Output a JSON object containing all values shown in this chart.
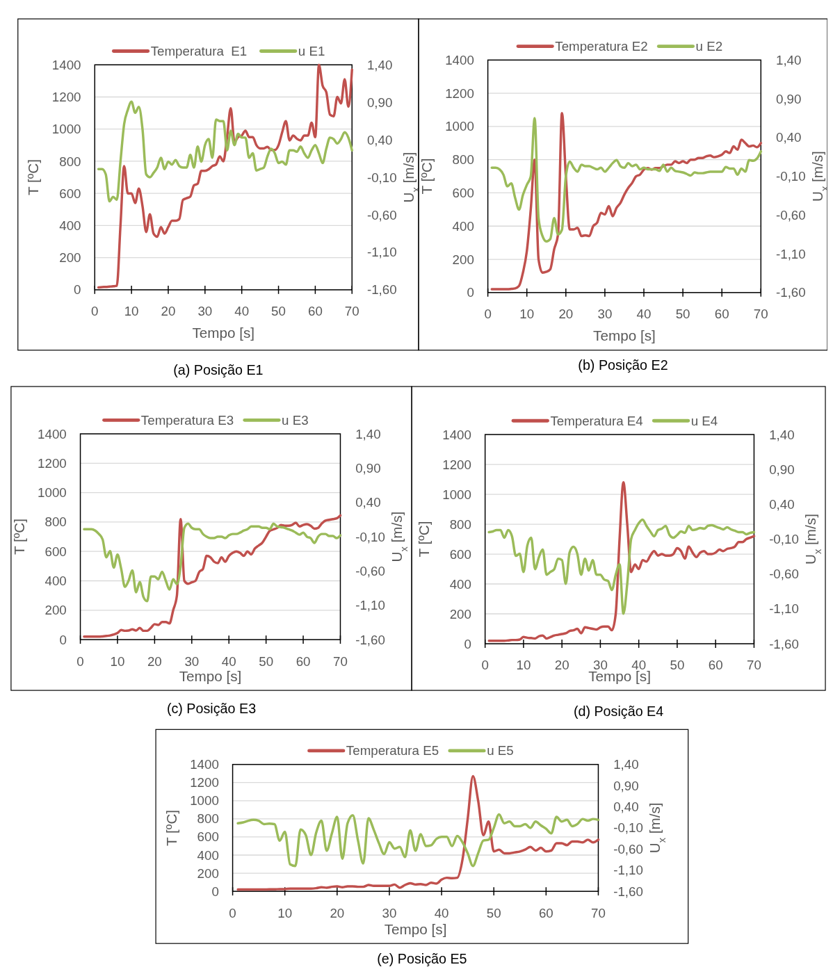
{
  "chart_data": [
    {
      "type": "line",
      "xlabel": "Tempo [s]",
      "ylabel": "T [ºC]",
      "y2label": "U$_{x}$ [m/s]",
      "annotations": [
        "(a) Posição E1"
      ],
      "legend": "top",
      "grid": "y",
      "xlim": [
        0,
        70
      ],
      "xticks": [
        0,
        10,
        20,
        30,
        40,
        50,
        60,
        70
      ],
      "ylim": [
        0,
        1400
      ],
      "yticks": [
        0,
        200,
        400,
        600,
        800,
        1000,
        1200,
        1400
      ],
      "y2lim": [
        -1.6,
        1.4
      ],
      "y2ticks": [
        {
          "value": -1.6,
          "label": "-1,60"
        },
        {
          "value": -1.1,
          "label": "-1,10"
        },
        {
          "value": -0.6,
          "label": "-0,60"
        },
        {
          "value": -0.1,
          "label": "-0,10"
        },
        {
          "value": 0.4,
          "label": "0,40"
        },
        {
          "value": 0.9,
          "label": "0,90"
        },
        {
          "value": 1.4,
          "label": "1,40"
        }
      ],
      "x": [
        1,
        2,
        3,
        4,
        5,
        6,
        7,
        8,
        9,
        10,
        11,
        12,
        13,
        14,
        15,
        16,
        17,
        18,
        19,
        20,
        21,
        22,
        23,
        24,
        25,
        26,
        27,
        28,
        29,
        30,
        31,
        32,
        33,
        34,
        35,
        36,
        37,
        38,
        39,
        40,
        41,
        42,
        43,
        44,
        45,
        46,
        47,
        48,
        49,
        50,
        51,
        52,
        53,
        54,
        55,
        56,
        57,
        58,
        59,
        60,
        61,
        62,
        63,
        64,
        65,
        66,
        67,
        68,
        69,
        70
      ],
      "series": [
        {
          "name": "Temperatura  E1",
          "color": "#c0504d",
          "values": [
            15,
            17,
            18,
            20,
            22,
            25,
            400,
            770,
            600,
            600,
            540,
            630,
            520,
            360,
            470,
            350,
            330,
            390,
            350,
            390,
            430,
            430,
            440,
            560,
            570,
            580,
            650,
            660,
            740,
            740,
            750,
            770,
            780,
            830,
            800,
            950,
            1130,
            920,
            950,
            960,
            990,
            950,
            950,
            900,
            880,
            880,
            890,
            870,
            870,
            900,
            980,
            1050,
            930,
            960,
            940,
            930,
            960,
            960,
            1040,
            950,
            1400,
            1270,
            1230,
            1090,
            1080,
            1200,
            1160,
            1310,
            1140,
            1370
          ]
        },
        {
          "name": "u E1",
          "color": "#9bbb59",
          "axis": "y2",
          "values": [
            0.01,
            0.01,
            -0.06,
            -0.42,
            -0.36,
            -0.4,
            0.11,
            0.61,
            0.8,
            0.91,
            0.76,
            0.84,
            0.54,
            -0.06,
            -0.1,
            -0.04,
            0.03,
            0.16,
            0.01,
            0.11,
            0.07,
            0.13,
            0.05,
            0.03,
            0.03,
            0.2,
            0.03,
            0.31,
            0.11,
            0.33,
            0.41,
            0.16,
            0.67,
            0.65,
            0.65,
            0.26,
            0.52,
            0.33,
            0.48,
            0.43,
            0.43,
            0.16,
            0.22,
            -0.01,
            0.01,
            0.03,
            0.18,
            0.28,
            0.22,
            0.09,
            0.11,
            0.07,
            0.26,
            0.26,
            0.24,
            0.31,
            0.22,
            0.16,
            0.26,
            0.33,
            0.22,
            0.09,
            0.28,
            0.43,
            0.41,
            0.35,
            0.41,
            0.5,
            0.43,
            0.26
          ]
        }
      ]
    },
    {
      "type": "line",
      "xlabel": "Tempo [s]",
      "ylabel": "T [ºC]",
      "y2label": "U$_{x}$ [m/s]",
      "annotations": [
        "(b) Posição E2"
      ],
      "legend": "top",
      "grid": "y",
      "xlim": [
        0,
        70
      ],
      "xticks": [
        0,
        10,
        20,
        30,
        40,
        50,
        60,
        70
      ],
      "ylim": [
        0,
        1400
      ],
      "yticks": [
        0,
        200,
        400,
        600,
        800,
        1000,
        1200,
        1400
      ],
      "y2lim": [
        -1.6,
        1.4
      ],
      "y2ticks": [
        {
          "value": -1.6,
          "label": "-1,60"
        },
        {
          "value": -1.1,
          "label": "-1,10"
        },
        {
          "value": -0.6,
          "label": "-0,60"
        },
        {
          "value": -0.1,
          "label": "-0,10"
        },
        {
          "value": 0.4,
          "label": "0,40"
        },
        {
          "value": 0.9,
          "label": "0,90"
        },
        {
          "value": 1.4,
          "label": "1,40"
        }
      ],
      "x": [
        1,
        2,
        3,
        4,
        5,
        6,
        7,
        8,
        9,
        10,
        11,
        12,
        13,
        14,
        15,
        16,
        17,
        18,
        19,
        20,
        21,
        22,
        23,
        24,
        25,
        26,
        27,
        28,
        29,
        30,
        31,
        32,
        33,
        34,
        35,
        36,
        37,
        38,
        39,
        40,
        41,
        42,
        43,
        44,
        45,
        46,
        47,
        48,
        49,
        50,
        51,
        52,
        53,
        54,
        55,
        56,
        57,
        58,
        59,
        60,
        61,
        62,
        63,
        64,
        65,
        66,
        67,
        68,
        69,
        70
      ],
      "series": [
        {
          "name": "Temperatura E2",
          "color": "#c0504d",
          "values": [
            20,
            20,
            20,
            20,
            20,
            22,
            25,
            40,
            120,
            250,
            500,
            800,
            200,
            120,
            125,
            140,
            260,
            350,
            1080,
            700,
            380,
            380,
            390,
            340,
            345,
            340,
            400,
            420,
            480,
            470,
            520,
            460,
            510,
            540,
            590,
            630,
            660,
            700,
            710,
            740,
            750,
            740,
            750,
            750,
            760,
            770,
            770,
            790,
            780,
            790,
            780,
            800,
            800,
            810,
            810,
            820,
            825,
            815,
            820,
            830,
            850,
            840,
            880,
            860,
            920,
            900,
            880,
            885,
            875,
            900
          ]
        },
        {
          "name": "u E2",
          "color": "#9bbb59",
          "axis": "y2",
          "values": [
            0.01,
            0.01,
            -0.01,
            -0.08,
            -0.23,
            -0.19,
            -0.38,
            -0.53,
            -0.34,
            -0.21,
            -0.1,
            0.65,
            -0.64,
            -0.87,
            -0.94,
            -0.91,
            -0.64,
            -0.85,
            -0.79,
            -0.1,
            0.09,
            0.01,
            -0.04,
            0.05,
            0.03,
            0.03,
            0.01,
            -0.01,
            0.01,
            -0.04,
            0.01,
            0.07,
            0.11,
            0.03,
            0.01,
            0.07,
            0.03,
            0.05,
            -0.01,
            0.01,
            -0.01,
            -0.01,
            -0.01,
            -0.03,
            0.05,
            -0.04,
            0.01,
            -0.03,
            -0.04,
            -0.05,
            -0.07,
            -0.09,
            -0.05,
            -0.06,
            -0.06,
            -0.05,
            -0.04,
            -0.04,
            -0.04,
            -0.04,
            0.02,
            0.0,
            0.0,
            -0.08,
            0.0,
            -0.04,
            0.11,
            0.1,
            0.13,
            0.22
          ]
        }
      ]
    },
    {
      "type": "line",
      "xlabel": "Tempo [s]",
      "ylabel": "T [ºC]",
      "y2label": "U$_{x}$ [m/s]",
      "annotations": [
        "(c) Posição E3"
      ],
      "legend": "top",
      "grid": "y",
      "xlim": [
        0,
        70
      ],
      "xticks": [
        0,
        10,
        20,
        30,
        40,
        50,
        60,
        70
      ],
      "ylim": [
        0,
        1400
      ],
      "yticks": [
        0,
        200,
        400,
        600,
        800,
        1000,
        1200,
        1400
      ],
      "y2lim": [
        -1.6,
        1.4
      ],
      "y2ticks": [
        {
          "value": -1.6,
          "label": "-1,60"
        },
        {
          "value": -1.1,
          "label": "-1,10"
        },
        {
          "value": -0.6,
          "label": "-0,60"
        },
        {
          "value": -0.1,
          "label": "-0,10"
        },
        {
          "value": 0.4,
          "label": "0,40"
        },
        {
          "value": 0.9,
          "label": "0,90"
        },
        {
          "value": 1.4,
          "label": "1,40"
        }
      ],
      "x": [
        1,
        2,
        3,
        4,
        5,
        6,
        7,
        8,
        9,
        10,
        11,
        12,
        13,
        14,
        15,
        16,
        17,
        18,
        19,
        20,
        21,
        22,
        23,
        24,
        25,
        26,
        27,
        28,
        29,
        30,
        31,
        32,
        33,
        34,
        35,
        36,
        37,
        38,
        39,
        40,
        41,
        42,
        43,
        44,
        45,
        46,
        47,
        48,
        49,
        50,
        51,
        52,
        53,
        54,
        55,
        56,
        57,
        58,
        59,
        60,
        61,
        62,
        63,
        64,
        65,
        66,
        67,
        68,
        69,
        70
      ],
      "series": [
        {
          "name": "Temperatura E3",
          "color": "#c0504d",
          "values": [
            20,
            20,
            20,
            20,
            20,
            22,
            25,
            28,
            35,
            45,
            65,
            60,
            62,
            70,
            62,
            80,
            60,
            60,
            80,
            105,
            100,
            120,
            120,
            110,
            200,
            300,
            820,
            400,
            380,
            390,
            400,
            460,
            480,
            570,
            560,
            530,
            520,
            560,
            530,
            570,
            590,
            600,
            590,
            570,
            600,
            580,
            620,
            640,
            660,
            700,
            740,
            750,
            760,
            780,
            775,
            775,
            780,
            795,
            770,
            780,
            785,
            775,
            755,
            760,
            790,
            810,
            815,
            820,
            825,
            845
          ]
        },
        {
          "name": "u E3",
          "color": "#9bbb59",
          "axis": "y2",
          "values": [
            0.01,
            0.01,
            0.01,
            -0.01,
            -0.06,
            -0.14,
            -0.4,
            -0.31,
            -0.55,
            -0.36,
            -0.57,
            -0.83,
            -0.74,
            -0.59,
            -0.91,
            -0.76,
            -0.98,
            -1.04,
            -0.68,
            -0.68,
            -0.72,
            -0.61,
            -0.74,
            -0.87,
            -0.72,
            -0.79,
            -0.53,
            0.03,
            0.09,
            0.03,
            0.01,
            0.01,
            -0.06,
            -0.1,
            -0.12,
            -0.12,
            -0.1,
            -0.1,
            -0.12,
            -0.08,
            -0.06,
            -0.06,
            -0.04,
            -0.01,
            0.01,
            0.05,
            0.05,
            0.05,
            0.03,
            0.03,
            0.01,
            0.09,
            0.05,
            0.04,
            0.03,
            0.01,
            -0.01,
            -0.04,
            -0.07,
            -0.04,
            -0.1,
            -0.12,
            -0.19,
            -0.1,
            -0.06,
            -0.06,
            -0.09,
            -0.09,
            -0.12,
            -0.08
          ]
        }
      ]
    },
    {
      "type": "line",
      "xlabel": "Tempo [s]",
      "ylabel": "T [ºC]",
      "y2label": "U$_{x}$ [m/s]",
      "annotations": [
        "(d) Posição E4"
      ],
      "legend": "top",
      "grid": "y",
      "xlim": [
        0,
        70
      ],
      "xticks": [
        0,
        10,
        20,
        30,
        40,
        50,
        60,
        70
      ],
      "ylim": [
        0,
        1400
      ],
      "yticks": [
        0,
        200,
        400,
        600,
        800,
        1000,
        1200,
        1400
      ],
      "y2lim": [
        -1.6,
        1.4
      ],
      "y2ticks": [
        {
          "value": -1.6,
          "label": "-1,60"
        },
        {
          "value": -1.1,
          "label": "-1,10"
        },
        {
          "value": -0.6,
          "label": "-0,60"
        },
        {
          "value": -0.1,
          "label": "-0,10"
        },
        {
          "value": 0.4,
          "label": "0,40"
        },
        {
          "value": 0.9,
          "label": "0,90"
        },
        {
          "value": 1.4,
          "label": "1,40"
        }
      ],
      "x": [
        1,
        2,
        3,
        4,
        5,
        6,
        7,
        8,
        9,
        10,
        11,
        12,
        13,
        14,
        15,
        16,
        17,
        18,
        19,
        20,
        21,
        22,
        23,
        24,
        25,
        26,
        27,
        28,
        29,
        30,
        31,
        32,
        33,
        34,
        35,
        36,
        37,
        38,
        39,
        40,
        41,
        42,
        43,
        44,
        45,
        46,
        47,
        48,
        49,
        50,
        51,
        52,
        53,
        54,
        55,
        56,
        57,
        58,
        59,
        60,
        61,
        62,
        63,
        64,
        65,
        66,
        67,
        68,
        69,
        70
      ],
      "series": [
        {
          "name": "Temperatura E4",
          "color": "#c0504d",
          "values": [
            20,
            20,
            20,
            20,
            20,
            22,
            25,
            25,
            28,
            45,
            40,
            38,
            35,
            50,
            55,
            35,
            45,
            55,
            60,
            65,
            70,
            85,
            90,
            100,
            70,
            110,
            105,
            100,
            95,
            110,
            115,
            115,
            90,
            200,
            700,
            1080,
            800,
            480,
            530,
            500,
            560,
            550,
            590,
            620,
            590,
            600,
            590,
            590,
            600,
            640,
            620,
            570,
            650,
            610,
            580,
            610,
            620,
            600,
            600,
            610,
            630,
            620,
            635,
            640,
            650,
            680,
            680,
            700,
            710,
            720
          ]
        },
        {
          "name": "u E4",
          "color": "#9bbb59",
          "axis": "y2",
          "values": [
            0.0,
            0.01,
            0.03,
            0.03,
            -0.08,
            0.03,
            -0.06,
            -0.34,
            -0.31,
            -0.57,
            -0.19,
            -0.08,
            -0.53,
            -0.36,
            -0.25,
            -0.61,
            -0.57,
            -0.53,
            -0.38,
            -0.4,
            -0.74,
            -0.29,
            -0.21,
            -0.31,
            -0.61,
            -0.38,
            -0.55,
            -0.4,
            -0.61,
            -0.61,
            -0.68,
            -0.7,
            -0.83,
            -0.61,
            -0.46,
            -1.17,
            -0.74,
            -0.1,
            0.03,
            0.13,
            0.18,
            0.09,
            0.01,
            -0.06,
            0.03,
            0.05,
            0.09,
            -0.04,
            -0.08,
            -0.04,
            0.01,
            -0.01,
            0.09,
            0.03,
            0.04,
            0.06,
            0.05,
            0.09,
            0.1,
            0.08,
            0.06,
            0.04,
            0.07,
            0.04,
            0.02,
            0.0,
            0.0,
            -0.03,
            -0.01,
            0.0
          ]
        }
      ]
    },
    {
      "type": "line",
      "xlabel": "Tempo [s]",
      "ylabel": "T [ºC]",
      "y2label": "U$_{x}$ [m/s]",
      "annotations": [
        "(e) Posição E5"
      ],
      "legend": "top",
      "grid": "y",
      "xlim": [
        0,
        70
      ],
      "xticks": [
        0,
        10,
        20,
        30,
        40,
        50,
        60,
        70
      ],
      "ylim": [
        0,
        1400
      ],
      "yticks": [
        0,
        200,
        400,
        600,
        800,
        1000,
        1200,
        1400
      ],
      "y2lim": [
        -1.6,
        1.4
      ],
      "y2ticks": [
        {
          "value": -1.6,
          "label": "-1,60"
        },
        {
          "value": -1.1,
          "label": "-1,10"
        },
        {
          "value": -0.6,
          "label": "-0,60"
        },
        {
          "value": -0.1,
          "label": "-0,10"
        },
        {
          "value": 0.4,
          "label": "0,40"
        },
        {
          "value": 0.9,
          "label": "0,90"
        },
        {
          "value": 1.4,
          "label": "1,40"
        }
      ],
      "x": [
        1,
        2,
        3,
        4,
        5,
        6,
        7,
        8,
        9,
        10,
        11,
        12,
        13,
        14,
        15,
        16,
        17,
        18,
        19,
        20,
        21,
        22,
        23,
        24,
        25,
        26,
        27,
        28,
        29,
        30,
        31,
        32,
        33,
        34,
        35,
        36,
        37,
        38,
        39,
        40,
        41,
        42,
        43,
        44,
        45,
        46,
        47,
        48,
        49,
        50,
        51,
        52,
        53,
        54,
        55,
        56,
        57,
        58,
        59,
        60,
        61,
        62,
        63,
        64,
        65,
        66,
        67,
        68,
        69,
        70
      ],
      "series": [
        {
          "name": "Temperatura E5",
          "color": "#c0504d",
          "values": [
            20,
            20,
            20,
            20,
            20,
            20,
            22,
            22,
            25,
            25,
            30,
            30,
            30,
            30,
            30,
            35,
            45,
            40,
            50,
            55,
            45,
            55,
            55,
            50,
            50,
            70,
            60,
            60,
            60,
            60,
            75,
            40,
            70,
            90,
            75,
            80,
            70,
            95,
            85,
            130,
            150,
            145,
            150,
            350,
            800,
            1270,
            1000,
            620,
            770,
            440,
            460,
            420,
            420,
            430,
            440,
            460,
            490,
            450,
            480,
            440,
            450,
            530,
            530,
            510,
            550,
            550,
            540,
            570,
            540,
            570
          ]
        },
        {
          "name": "u E5",
          "color": "#9bbb59",
          "axis": "y2",
          "values": [
            0.01,
            0.03,
            0.07,
            0.09,
            0.07,
            -0.01,
            0.0,
            -0.01,
            -0.4,
            -0.19,
            -0.96,
            -1.0,
            -0.14,
            -0.27,
            -0.74,
            -0.21,
            0.07,
            -0.64,
            -0.23,
            0.16,
            -0.83,
            0.01,
            0.2,
            -0.4,
            -0.94,
            0.13,
            -0.14,
            -0.46,
            -0.72,
            -0.44,
            -0.59,
            -0.55,
            -0.79,
            -0.16,
            -0.64,
            -0.25,
            -0.53,
            -0.51,
            -0.36,
            -0.31,
            -0.31,
            -0.53,
            -0.29,
            -0.44,
            -0.7,
            -1.0,
            -0.7,
            -0.4,
            -0.38,
            -0.1,
            0.22,
            0.01,
            0.05,
            -0.06,
            -0.06,
            -0.01,
            -0.1,
            0.05,
            -0.04,
            -0.12,
            -0.23,
            0.16,
            0.05,
            0.09,
            -0.06,
            -0.01,
            0.11,
            0.07,
            0.11,
            0.09
          ]
        }
      ]
    }
  ]
}
